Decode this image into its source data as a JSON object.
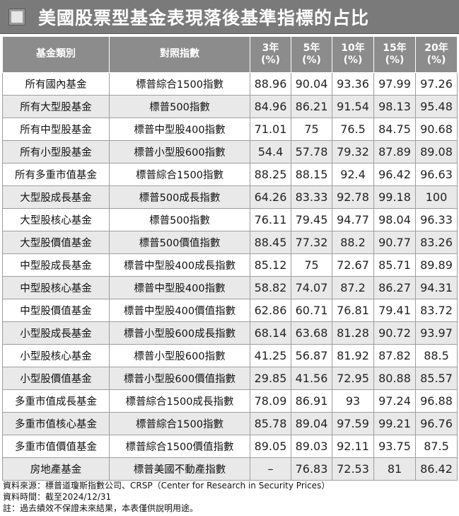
{
  "title": "美國股票型基金表現落後基準指標的占比",
  "headers": {
    "fund_type": "基金類別",
    "benchmark": "對照指數",
    "y3": "3年\n(%)",
    "y5": "5年\n(%)",
    "y10": "10年\n(%)",
    "y15": "15年\n(%)",
    "y20": "20年\n(%)"
  },
  "rows": [
    {
      "fund": "所有國內基金",
      "index": "標普綜合1500指數",
      "y3": "88.96",
      "y5": "90.04",
      "y10": "93.36",
      "y15": "97.99",
      "y20": "97.26"
    },
    {
      "fund": "所有大型股基金",
      "index": "標普500指數",
      "y3": "84.96",
      "y5": "86.21",
      "y10": "91.54",
      "y15": "98.13",
      "y20": "95.48"
    },
    {
      "fund": "所有中型股基金",
      "index": "標普中型股400指數",
      "y3": "71.01",
      "y5": "75",
      "y10": "76.5",
      "y15": "84.75",
      "y20": "90.68"
    },
    {
      "fund": "所有小型股基金",
      "index": "標普小型股600指數",
      "y3": "54.4",
      "y5": "57.78",
      "y10": "79.32",
      "y15": "87.89",
      "y20": "89.08"
    },
    {
      "fund": "所有多重市值基金",
      "index": "標普綜合1500指數",
      "y3": "88.25",
      "y5": "88.15",
      "y10": "92.4",
      "y15": "96.42",
      "y20": "96.63"
    },
    {
      "fund": "大型股成長基金",
      "index": "標普500成長指數",
      "y3": "64.26",
      "y5": "83.33",
      "y10": "92.78",
      "y15": "99.18",
      "y20": "100"
    },
    {
      "fund": "大型股核心基金",
      "index": "標普500指數",
      "y3": "76.11",
      "y5": "79.45",
      "y10": "94.77",
      "y15": "98.04",
      "y20": "96.33"
    },
    {
      "fund": "大型股價值基金",
      "index": "標普500價值指數",
      "y3": "88.45",
      "y5": "77.32",
      "y10": "88.2",
      "y15": "90.77",
      "y20": "83.26"
    },
    {
      "fund": "中型股成長基金",
      "index": "標普中型股400成長指數",
      "y3": "85.12",
      "y5": "75",
      "y10": "72.67",
      "y15": "85.71",
      "y20": "89.89"
    },
    {
      "fund": "中型股核心基金",
      "index": "標普中型股400指數",
      "y3": "58.82",
      "y5": "74.07",
      "y10": "87.2",
      "y15": "86.27",
      "y20": "94.31"
    },
    {
      "fund": "中型股價值基金",
      "index": "標普中型股400價值指數",
      "y3": "62.86",
      "y5": "60.71",
      "y10": "76.81",
      "y15": "79.41",
      "y20": "83.72"
    },
    {
      "fund": "小型股成長基金",
      "index": "標普小型股600成長指數",
      "y3": "68.14",
      "y5": "63.68",
      "y10": "81.28",
      "y15": "90.72",
      "y20": "93.97"
    },
    {
      "fund": "小型股核心基金",
      "index": "標普小型股600指數",
      "y3": "41.25",
      "y5": "56.87",
      "y10": "81.92",
      "y15": "87.82",
      "y20": "88.5"
    },
    {
      "fund": "小型股價值基金",
      "index": "標普小型股600價值指數",
      "y3": "29.85",
      "y5": "41.56",
      "y10": "72.95",
      "y15": "80.88",
      "y20": "85.57"
    },
    {
      "fund": "多重市值成長基金",
      "index": "標普綜合1500成長指數",
      "y3": "78.09",
      "y5": "86.91",
      "y10": "93",
      "y15": "97.24",
      "y20": "96.88"
    },
    {
      "fund": "多重市值核心基金",
      "index": "標普綜合1500指數",
      "y3": "85.78",
      "y5": "89.04",
      "y10": "97.59",
      "y15": "99.21",
      "y20": "96.76"
    },
    {
      "fund": "多重市值價值基金",
      "index": "標普綜合1500價值指數",
      "y3": "89.05",
      "y5": "89.03",
      "y10": "92.11",
      "y15": "93.75",
      "y20": "87.5"
    },
    {
      "fund": "房地產基金",
      "index": "標普美國不動產指數",
      "y3": "–",
      "y5": "76.83",
      "y10": "72.53",
      "y15": "81",
      "y20": "86.42"
    }
  ],
  "footer": {
    "source": "資料來源：標普道瓊斯指數公司、CRSP（Center for Research in Security Prices）",
    "date": "資料時間：截至2024/12/31",
    "note": "註：過去績效不保證未來結果，本表僅供說明用途。"
  },
  "colors": {
    "title_bg": "#7a7a7a",
    "header_bg": "#8c8c8c",
    "row_alt": "#e9e9e9",
    "text_white": "#ffffff"
  }
}
